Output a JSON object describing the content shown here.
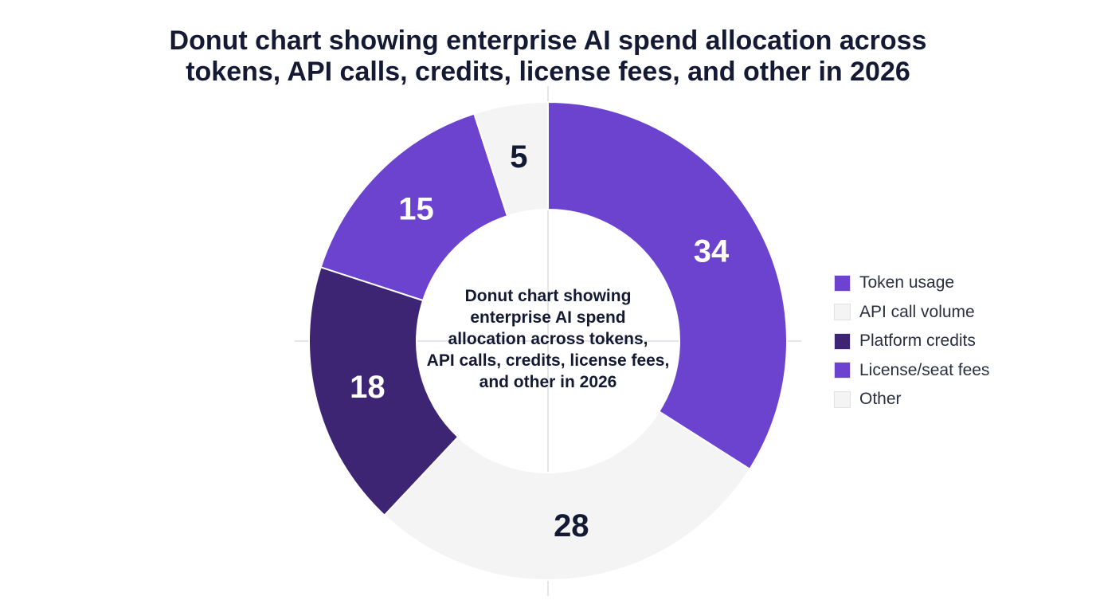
{
  "chart_data": {
    "type": "pie",
    "style": "donut",
    "title_lines": [
      "Donut chart showing enterprise AI spend allocation across",
      "tokens, API calls, credits, license fees, and other in 2026"
    ],
    "center_label_lines": [
      "Donut chart showing",
      "enterprise AI spend",
      "allocation across tokens,",
      "API calls, credits, license fees,",
      "and other in 2026"
    ],
    "slices": [
      {
        "name": "Token usage",
        "value": 34,
        "color": "#6c43cf",
        "label_color": "#ffffff"
      },
      {
        "name": "API call volume",
        "value": 28,
        "color": "#f4f4f5",
        "label_color": "#141a33"
      },
      {
        "name": "Platform credits",
        "value": 18,
        "color": "#3e2573",
        "label_color": "#ffffff"
      },
      {
        "name": "License/seat fees",
        "value": 15,
        "color": "#6c43cf",
        "label_color": "#ffffff"
      },
      {
        "name": "Other",
        "value": 5,
        "color": "#f4f4f5",
        "label_color": "#141a33"
      }
    ],
    "legend_position": "right"
  }
}
